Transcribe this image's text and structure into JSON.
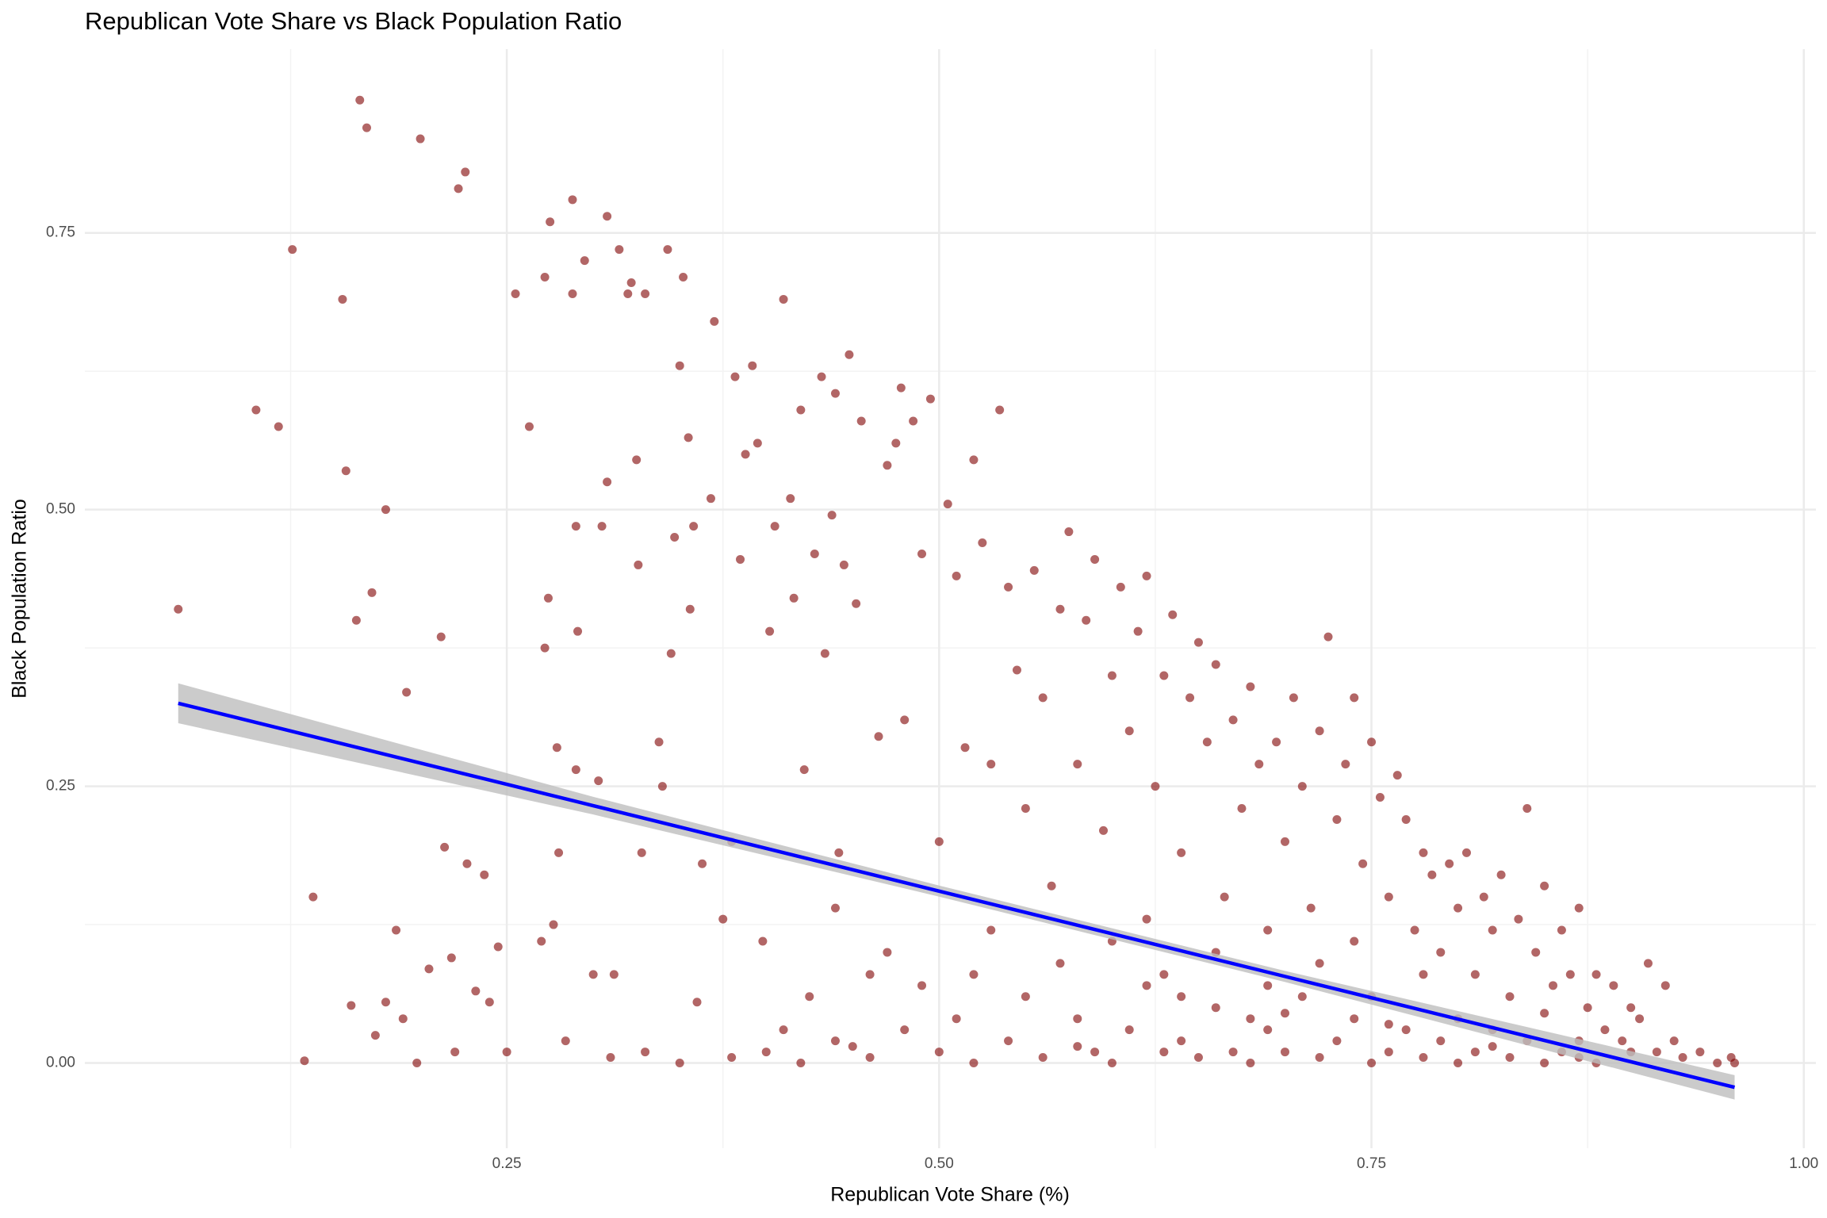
{
  "chart_data": {
    "type": "scatter",
    "title": "Republican Vote Share vs Black Population Ratio",
    "x_label": "Republican Vote Share (%)",
    "y_label": "Black Population Ratio",
    "color": "#7f0000",
    "opacity": 0.6,
    "grid": true,
    "xlim": [
      0.006,
      1.007
    ],
    "ylim": [
      -0.077,
      0.916
    ],
    "xticks": [
      {
        "value": 0.25,
        "label": "0.25"
      },
      {
        "value": 0.5,
        "label": "0.50"
      },
      {
        "value": 0.75,
        "label": "0.75"
      },
      {
        "value": 1,
        "label": "1.00"
      }
    ],
    "yticks": [
      {
        "value": 0,
        "label": "0.00"
      },
      {
        "value": 0.25,
        "label": "0.25"
      },
      {
        "value": 0.5,
        "label": "0.50"
      },
      {
        "value": 0.75,
        "label": "0.75"
      }
    ],
    "x_minor_ticks": [
      0.125,
      0.375,
      0.625,
      0.875
    ],
    "y_minor_ticks": [
      0.125,
      0.375,
      0.625
    ],
    "x": [
      0.06,
      0.105,
      0.118,
      0.126,
      0.133,
      0.138,
      0.155,
      0.157,
      0.16,
      0.163,
      0.165,
      0.169,
      0.172,
      0.174,
      0.18,
      0.18,
      0.186,
      0.19,
      0.192,
      0.198,
      0.2,
      0.205,
      0.212,
      0.214,
      0.218,
      0.22,
      0.222,
      0.226,
      0.227,
      0.232,
      0.237,
      0.24,
      0.245,
      0.25,
      0.255,
      0.263,
      0.27,
      0.272,
      0.272,
      0.274,
      0.275,
      0.277,
      0.279,
      0.28,
      0.284,
      0.288,
      0.288,
      0.29,
      0.29,
      0.291,
      0.295,
      0.3,
      0.303,
      0.305,
      0.308,
      0.308,
      0.312,
      0.315,
      0.32,
      0.322,
      0.325,
      0.326,
      0.328,
      0.33,
      0.338,
      0.34,
      0.343,
      0.345,
      0.347,
      0.35,
      0.352,
      0.355,
      0.356,
      0.358,
      0.36,
      0.363,
      0.368,
      0.37,
      0.375,
      0.38,
      0.382,
      0.385,
      0.388,
      0.392,
      0.395,
      0.398,
      0.402,
      0.405,
      0.41,
      0.414,
      0.416,
      0.42,
      0.422,
      0.425,
      0.428,
      0.432,
      0.434,
      0.438,
      0.44,
      0.442,
      0.445,
      0.448,
      0.452,
      0.455,
      0.46,
      0.465,
      0.47,
      0.475,
      0.478,
      0.48,
      0.485,
      0.49,
      0.495,
      0.5,
      0.505,
      0.51,
      0.515,
      0.52,
      0.525,
      0.53,
      0.535,
      0.54,
      0.545,
      0.55,
      0.555,
      0.56,
      0.565,
      0.57,
      0.575,
      0.58,
      0.585,
      0.59,
      0.595,
      0.6,
      0.605,
      0.61,
      0.615,
      0.62,
      0.625,
      0.63,
      0.635,
      0.64,
      0.645,
      0.65,
      0.655,
      0.66,
      0.665,
      0.67,
      0.675,
      0.68,
      0.685,
      0.69,
      0.695,
      0.7,
      0.705,
      0.71,
      0.715,
      0.72,
      0.725,
      0.73,
      0.735,
      0.74,
      0.745,
      0.75,
      0.755,
      0.76,
      0.765,
      0.77,
      0.775,
      0.78,
      0.785,
      0.79,
      0.795,
      0.8,
      0.805,
      0.81,
      0.815,
      0.82,
      0.825,
      0.83,
      0.835,
      0.84,
      0.845,
      0.85,
      0.855,
      0.86,
      0.865,
      0.87,
      0.875,
      0.88,
      0.885,
      0.89,
      0.895,
      0.9,
      0.905,
      0.91,
      0.915,
      0.92,
      0.925,
      0.93,
      0.94,
      0.95,
      0.958,
      0.96,
      0.38,
      0.4,
      0.42,
      0.44,
      0.46,
      0.48,
      0.5,
      0.52,
      0.54,
      0.55,
      0.56,
      0.58,
      0.59,
      0.6,
      0.61,
      0.62,
      0.63,
      0.64,
      0.65,
      0.66,
      0.67,
      0.68,
      0.69,
      0.7,
      0.71,
      0.72,
      0.73,
      0.74,
      0.75,
      0.76,
      0.77,
      0.78,
      0.79,
      0.8,
      0.81,
      0.82,
      0.83,
      0.84,
      0.85,
      0.86,
      0.87,
      0.88,
      0.57,
      0.6,
      0.63,
      0.66,
      0.69,
      0.72,
      0.75,
      0.78,
      0.53,
      0.47,
      0.44,
      0.52,
      0.62,
      0.68,
      0.74,
      0.8,
      0.85,
      0.9,
      0.31,
      0.33,
      0.35,
      0.41,
      0.45,
      0.49,
      0.51,
      0.58,
      0.64,
      0.7,
      0.76,
      0.82,
      0.87
    ],
    "y": [
      0.41,
      0.59,
      0.575,
      0.735,
      0.002,
      0.15,
      0.69,
      0.535,
      0.052,
      0.4,
      0.87,
      0.845,
      0.425,
      0.025,
      0.5,
      0.055,
      0.12,
      0.04,
      0.335,
      0,
      0.835,
      0.085,
      0.385,
      0.195,
      0.095,
      0.01,
      0.79,
      0.805,
      0.18,
      0.065,
      0.17,
      0.055,
      0.105,
      0.01,
      0.695,
      0.575,
      0.11,
      0.375,
      0.71,
      0.42,
      0.76,
      0.125,
      0.285,
      0.19,
      0.02,
      0.695,
      0.78,
      0.265,
      0.485,
      0.39,
      0.725,
      0.08,
      0.255,
      0.485,
      0.525,
      0.765,
      0.08,
      0.735,
      0.695,
      0.705,
      0.545,
      0.45,
      0.19,
      0.695,
      0.29,
      0.25,
      0.735,
      0.37,
      0.475,
      0.63,
      0.71,
      0.565,
      0.41,
      0.485,
      0.055,
      0.18,
      0.51,
      0.67,
      0.13,
      0.2,
      0.62,
      0.455,
      0.55,
      0.63,
      0.56,
      0.11,
      0.39,
      0.485,
      0.69,
      0.51,
      0.42,
      0.59,
      0.265,
      0.06,
      0.46,
      0.62,
      0.37,
      0.495,
      0.605,
      0.19,
      0.45,
      0.64,
      0.415,
      0.58,
      0.08,
      0.295,
      0.54,
      0.56,
      0.61,
      0.31,
      0.58,
      0.46,
      0.6,
      0.2,
      0.505,
      0.44,
      0.285,
      0.545,
      0.47,
      0.27,
      0.59,
      0.43,
      0.355,
      0.23,
      0.445,
      0.33,
      0.16,
      0.41,
      0.48,
      0.27,
      0.4,
      0.455,
      0.21,
      0.35,
      0.43,
      0.3,
      0.39,
      0.44,
      0.25,
      0.35,
      0.405,
      0.19,
      0.33,
      0.38,
      0.29,
      0.36,
      0.15,
      0.31,
      0.23,
      0.34,
      0.27,
      0.12,
      0.29,
      0.2,
      0.33,
      0.25,
      0.14,
      0.3,
      0.385,
      0.22,
      0.27,
      0.33,
      0.18,
      0.29,
      0.24,
      0.15,
      0.26,
      0.22,
      0.12,
      0.19,
      0.17,
      0.1,
      0.18,
      0.14,
      0.19,
      0.08,
      0.15,
      0.12,
      0.17,
      0.06,
      0.13,
      0.23,
      0.1,
      0.16,
      0.07,
      0.12,
      0.08,
      0.14,
      0.05,
      0.08,
      0.03,
      0.07,
      0.02,
      0.05,
      0.04,
      0.09,
      0.01,
      0.07,
      0.02,
      0.005,
      0.01,
      0,
      0.005,
      0,
      0.005,
      0.01,
      0,
      0.02,
      0.005,
      0.03,
      0.01,
      0,
      0.02,
      0.06,
      0.005,
      0.04,
      0.01,
      0,
      0.03,
      0.07,
      0.01,
      0.02,
      0.005,
      0.05,
      0.01,
      0,
      0.03,
      0.01,
      0.06,
      0.005,
      0.02,
      0.04,
      0,
      0.01,
      0.03,
      0.005,
      0.02,
      0,
      0.01,
      0.03,
      0.005,
      0.02,
      0,
      0.01,
      0.02,
      0,
      0.09,
      0.11,
      0.08,
      0.1,
      0.07,
      0.09,
      0.06,
      0.08,
      0.12,
      0.1,
      0.14,
      0.08,
      0.13,
      0.04,
      0.11,
      0.04,
      0.045,
      0.01,
      0.005,
      0.01,
      0,
      0.03,
      0.015,
      0.07,
      0.04,
      0.015,
      0.06,
      0.045,
      0.035,
      0.015,
      0.005
    ],
    "fit": {
      "color": "#0000ff",
      "band_color": "#bebebe",
      "x": [
        0.06,
        0.3,
        0.5,
        0.7,
        0.96
      ],
      "y": [
        0.325,
        0.2325,
        0.1553,
        0.0782,
        -0.022
      ],
      "lower": [
        0.307,
        0.2245,
        0.1503,
        0.0732,
        -0.033
      ],
      "upper": [
        0.343,
        0.2405,
        0.1603,
        0.0832,
        -0.011
      ]
    }
  }
}
